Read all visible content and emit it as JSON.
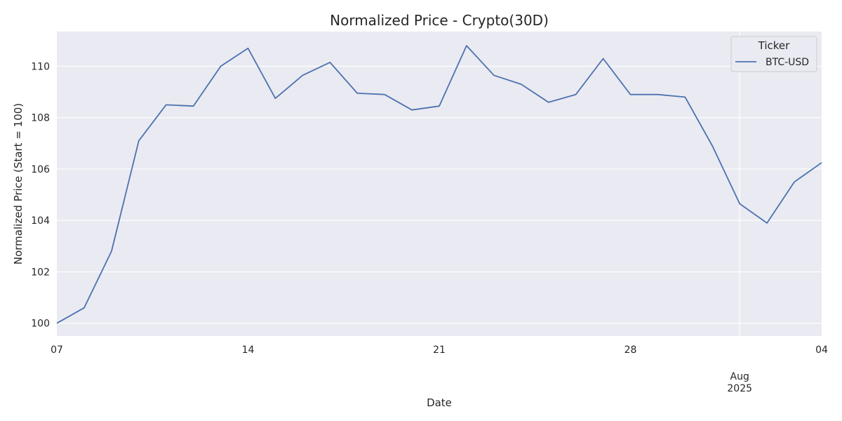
{
  "chart_data": {
    "type": "line",
    "title": "Normalized Price - Crypto(30D)",
    "xlabel": "Date",
    "ylabel": "Normalized Price (Start = 100)",
    "x_start": "2025-07-07",
    "x_end": "2025-08-04",
    "ylim": [
      99.5,
      111.35
    ],
    "y_ticks": [
      100,
      102,
      104,
      106,
      108,
      110
    ],
    "x_ticks": [
      {
        "day": 0,
        "label": "07",
        "sublabel": ""
      },
      {
        "day": 7,
        "label": "14",
        "sublabel": ""
      },
      {
        "day": 14,
        "label": "21",
        "sublabel": ""
      },
      {
        "day": 21,
        "label": "28",
        "sublabel": ""
      },
      {
        "day": 25,
        "label": "Aug",
        "sublabel": "2025"
      },
      {
        "day": 28,
        "label": "04",
        "sublabel": ""
      }
    ],
    "legend": {
      "title": "Ticker",
      "position": "top-right"
    },
    "grid": true,
    "series": [
      {
        "name": "BTC-USD",
        "color": "#4c72b0",
        "x": [
          0,
          1,
          2,
          3,
          4,
          5,
          6,
          7,
          8,
          9,
          10,
          11,
          12,
          13,
          14,
          15,
          16,
          17,
          18,
          19,
          20,
          21,
          22,
          23,
          24,
          25,
          26,
          27,
          28
        ],
        "values": [
          100.0,
          100.6,
          102.8,
          107.1,
          108.5,
          108.45,
          110.0,
          110.7,
          108.75,
          109.65,
          110.15,
          108.95,
          108.9,
          108.3,
          108.45,
          110.8,
          109.65,
          109.3,
          108.6,
          108.9,
          110.3,
          108.9,
          108.9,
          108.8,
          106.9,
          104.65,
          103.9,
          105.5,
          106.25
        ]
      }
    ]
  }
}
